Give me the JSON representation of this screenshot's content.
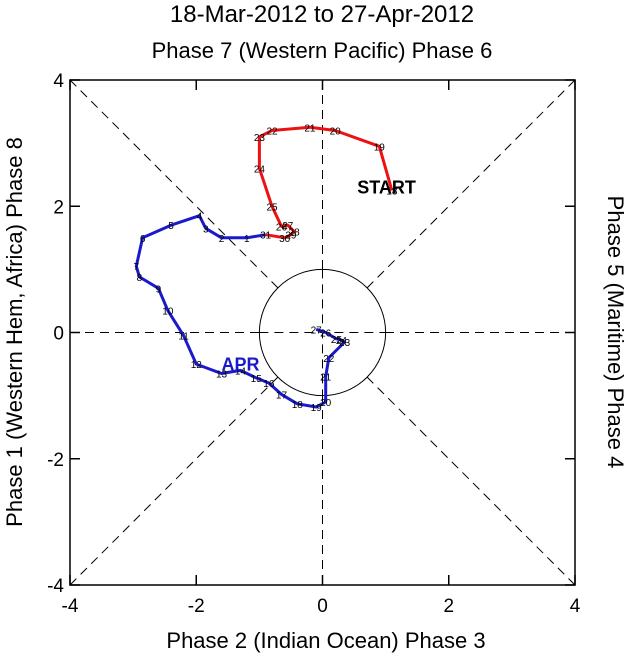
{
  "chart_data": {
    "type": "line",
    "title": "18-Mar-2012 to 27-Apr-2012",
    "top_label": "Phase 7 (Western Pacific) Phase 6",
    "bottom_label": "Phase 2 (Indian Ocean) Phase 3",
    "left_label": "Phase 1 (Western Hem, Africa) Phase 8",
    "right_label": "Phase 5 (Maritime) Phase 4",
    "xlim": [
      -4,
      4
    ],
    "ylim": [
      -4,
      4
    ],
    "xticks": [
      -4,
      -2,
      0,
      2,
      4
    ],
    "yticks": [
      -4,
      -2,
      0,
      2,
      4
    ],
    "xtick_labels": [
      "-4",
      "-2",
      "0",
      "2",
      "4"
    ],
    "ytick_labels": [
      "-4",
      "-2",
      "0",
      "2",
      "4"
    ],
    "unit_circle_radius": 1,
    "annotations": [
      {
        "text": "START",
        "x": 0.55,
        "y": 2.2,
        "color": "#000000"
      },
      {
        "text": "APR",
        "x": -1.6,
        "y": -0.6,
        "color": "#1a1acc"
      }
    ],
    "series": [
      {
        "name": "March",
        "color": "#ee1111",
        "points": [
          {
            "day": "18",
            "x": 1.1,
            "y": 2.25
          },
          {
            "day": "19",
            "x": 0.9,
            "y": 2.95
          },
          {
            "day": "20",
            "x": 0.2,
            "y": 3.2
          },
          {
            "day": "21",
            "x": -0.2,
            "y": 3.25
          },
          {
            "day": "22",
            "x": -0.8,
            "y": 3.2
          },
          {
            "day": "23",
            "x": -1.0,
            "y": 3.1
          },
          {
            "day": "24",
            "x": -1.0,
            "y": 2.6
          },
          {
            "day": "25",
            "x": -0.8,
            "y": 2.0
          },
          {
            "day": "26",
            "x": -0.65,
            "y": 1.68
          },
          {
            "day": "27",
            "x": -0.55,
            "y": 1.7
          },
          {
            "day": "28",
            "x": -0.45,
            "y": 1.6
          },
          {
            "day": "29",
            "x": -0.5,
            "y": 1.55
          },
          {
            "day": "30",
            "x": -0.6,
            "y": 1.5
          },
          {
            "day": "31",
            "x": -0.9,
            "y": 1.55
          }
        ]
      },
      {
        "name": "April",
        "color": "#1a1acc",
        "points": [
          {
            "day": "1",
            "x": -1.2,
            "y": 1.5
          },
          {
            "day": "2",
            "x": -1.6,
            "y": 1.5
          },
          {
            "day": "3",
            "x": -1.85,
            "y": 1.65
          },
          {
            "day": "4",
            "x": -1.95,
            "y": 1.85
          },
          {
            "day": "5",
            "x": -2.4,
            "y": 1.7
          },
          {
            "day": "6",
            "x": -2.85,
            "y": 1.5
          },
          {
            "day": "7",
            "x": -2.95,
            "y": 1.05
          },
          {
            "day": "8",
            "x": -2.9,
            "y": 0.88
          },
          {
            "day": "9",
            "x": -2.6,
            "y": 0.7
          },
          {
            "day": "10",
            "x": -2.45,
            "y": 0.35
          },
          {
            "day": "11",
            "x": -2.2,
            "y": -0.05
          },
          {
            "day": "12",
            "x": -2.0,
            "y": -0.5
          },
          {
            "day": "13",
            "x": -1.6,
            "y": -0.65
          },
          {
            "day": "14",
            "x": -1.3,
            "y": -0.6
          },
          {
            "day": "15",
            "x": -1.05,
            "y": -0.72
          },
          {
            "day": "16",
            "x": -0.85,
            "y": -0.8
          },
          {
            "day": "17",
            "x": -0.65,
            "y": -0.98
          },
          {
            "day": "18",
            "x": -0.4,
            "y": -1.13
          },
          {
            "day": "19",
            "x": -0.1,
            "y": -1.18
          },
          {
            "day": "20",
            "x": 0.05,
            "y": -1.1
          },
          {
            "day": "21",
            "x": 0.05,
            "y": -0.7
          },
          {
            "day": "22",
            "x": 0.1,
            "y": -0.4
          },
          {
            "day": "23",
            "x": 0.35,
            "y": -0.15
          },
          {
            "day": "24",
            "x": 0.3,
            "y": -0.12
          },
          {
            "day": "25",
            "x": 0.22,
            "y": -0.1
          },
          {
            "day": "26",
            "x": 0.05,
            "y": 0.0
          },
          {
            "day": "27",
            "x": -0.1,
            "y": 0.05
          }
        ]
      }
    ]
  }
}
